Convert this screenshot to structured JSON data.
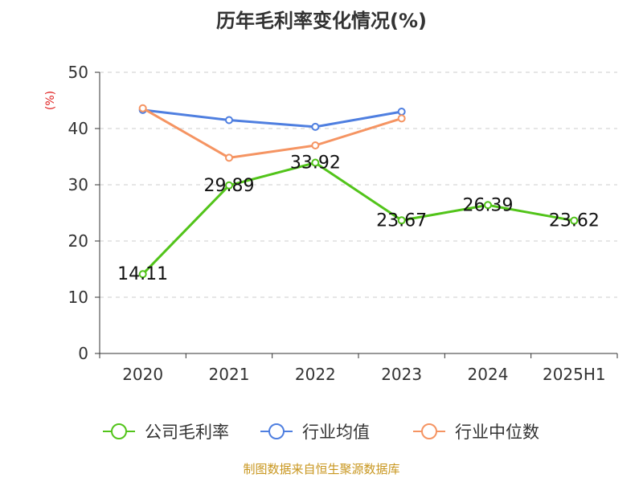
{
  "chart_data": {
    "type": "line",
    "title": "历年毛利率变化情况(%)",
    "unit_label": "(%)",
    "categories": [
      "2020",
      "2021",
      "2022",
      "2023",
      "2024",
      "2025H1"
    ],
    "y_ticks": [
      "0",
      "10",
      "20",
      "30",
      "40",
      "50"
    ],
    "ylim": [
      0,
      50
    ],
    "grid": true,
    "legend_position": "bottom",
    "series": [
      {
        "name": "公司毛利率",
        "color": "#52c41a",
        "values": [
          14.11,
          29.89,
          33.92,
          23.67,
          26.39,
          23.62
        ],
        "labels": [
          "14.11",
          "29.89",
          "33.92",
          "23.67",
          "26.39",
          "23.62"
        ]
      },
      {
        "name": "行业均值",
        "color": "#4f7fe0",
        "values": [
          43.3,
          41.5,
          40.3,
          43.0,
          null,
          null
        ]
      },
      {
        "name": "行业中位数",
        "color": "#f59462",
        "values": [
          43.6,
          34.8,
          37.0,
          41.8,
          null,
          null
        ]
      }
    ],
    "source": "制图数据来自恒生聚源数据库"
  }
}
